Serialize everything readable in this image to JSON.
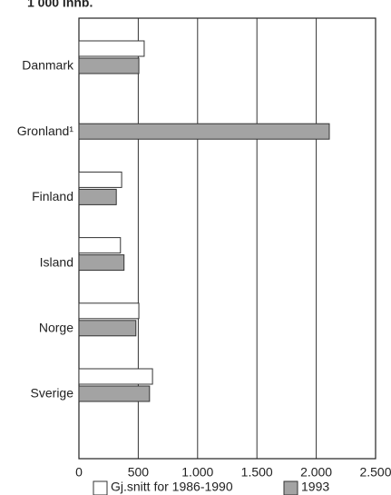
{
  "chart_data": {
    "type": "bar",
    "orientation": "horizontal",
    "subtitle": "1 000 innb.",
    "categories": [
      "Danmark",
      "Gronland¹",
      "Finland",
      "Island",
      "Norge",
      "Sverige"
    ],
    "series": [
      {
        "name": "Gj.snitt for 1986-1990",
        "color": "#ffffff",
        "values": [
          550,
          null,
          360,
          350,
          505,
          620
        ]
      },
      {
        "name": "1993",
        "color": "#a3a3a3",
        "values": [
          505,
          2110,
          315,
          380,
          480,
          595
        ]
      }
    ],
    "xlim": [
      0,
      2500
    ],
    "xticks": [
      0,
      500,
      {
        "value": 1000,
        "label": "1.000"
      },
      {
        "value": 1500,
        "label": "1.500"
      },
      {
        "value": 2000,
        "label": "2.000"
      },
      {
        "value": 2500,
        "label": "2.500"
      }
    ],
    "grid": true,
    "legend": "bottom"
  }
}
